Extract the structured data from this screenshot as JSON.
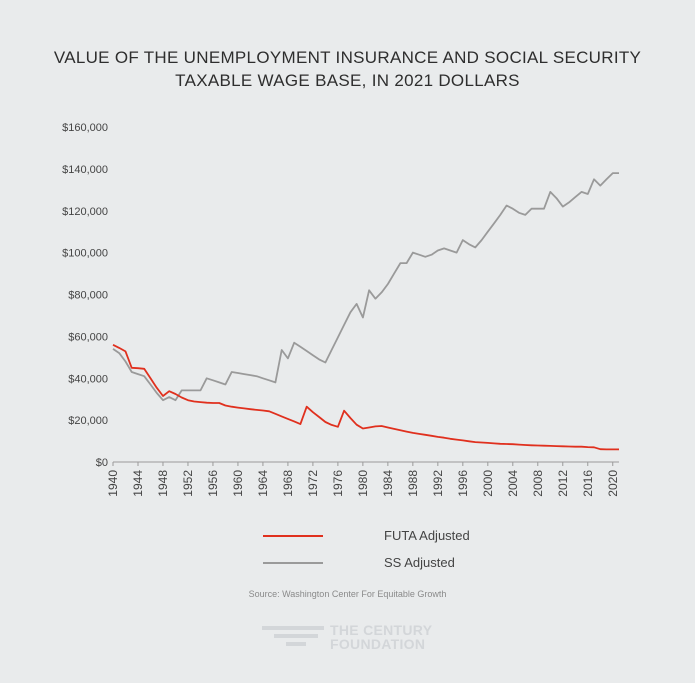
{
  "chart_data": {
    "type": "line",
    "title": [
      "VALUE OF THE UNEMPLOYMENT INSURANCE AND SOCIAL SECURITY",
      "TAXABLE WAGE BASE, IN 2021 DOLLARS"
    ],
    "xlabel": "",
    "ylabel": "",
    "xlim": [
      1940,
      2021
    ],
    "ylim": [
      0,
      160000
    ],
    "x_ticks": [
      "1940",
      "1944",
      "1948",
      "1952",
      "1956",
      "1960",
      "1964",
      "1968",
      "1972",
      "1976",
      "1980",
      "1984",
      "1988",
      "1992",
      "1996",
      "2000",
      "2004",
      "2008",
      "2012",
      "2016",
      "2020"
    ],
    "y_ticks": [
      "$0",
      "$20,000",
      "$40,000",
      "$60,000",
      "$80,000",
      "$100,000",
      "$120,000",
      "$140,000",
      "$160,000"
    ],
    "series": [
      {
        "name": "FUTA Adjusted",
        "color": "#e0301e",
        "x": [
          1940,
          1941,
          1942,
          1943,
          1944,
          1945,
          1946,
          1947,
          1948,
          1949,
          1950,
          1951,
          1952,
          1953,
          1954,
          1955,
          1956,
          1957,
          1958,
          1959,
          1960,
          1961,
          1962,
          1963,
          1964,
          1965,
          1966,
          1967,
          1968,
          1969,
          1970,
          1971,
          1972,
          1973,
          1974,
          1975,
          1976,
          1977,
          1978,
          1979,
          1980,
          1981,
          1982,
          1983,
          1984,
          1985,
          1986,
          1987,
          1988,
          1989,
          1990,
          1991,
          1992,
          1993,
          1994,
          1995,
          1996,
          1997,
          1998,
          1999,
          2000,
          2001,
          2002,
          2003,
          2004,
          2005,
          2006,
          2007,
          2008,
          2009,
          2010,
          2011,
          2012,
          2013,
          2014,
          2015,
          2016,
          2017,
          2018,
          2019,
          2020,
          2021
        ],
        "values": [
          56000,
          54500,
          52800,
          45000,
          44800,
          44500,
          40000,
          35500,
          31500,
          33800,
          32500,
          30800,
          29500,
          28900,
          28600,
          28300,
          28200,
          28200,
          27000,
          26400,
          26000,
          25600,
          25200,
          24900,
          24600,
          24200,
          23000,
          21800,
          20600,
          19400,
          18100,
          26400,
          23800,
          21500,
          19100,
          17700,
          16800,
          24500,
          21000,
          17800,
          16000,
          16500,
          17000,
          17200,
          16500,
          15800,
          15200,
          14500,
          13900,
          13400,
          13000,
          12500,
          12000,
          11600,
          11100,
          10700,
          10300,
          9900,
          9500,
          9300,
          9100,
          8900,
          8700,
          8600,
          8500,
          8300,
          8100,
          8000,
          7900,
          7800,
          7700,
          7600,
          7500,
          7400,
          7300,
          7300,
          7100,
          7000,
          6100,
          6000,
          6000,
          6000
        ]
      },
      {
        "name": "SS Adjusted",
        "color": "#9a9a9a",
        "x": [
          1940,
          1941,
          1942,
          1943,
          1944,
          1945,
          1946,
          1947,
          1948,
          1949,
          1950,
          1951,
          1952,
          1953,
          1954,
          1955,
          1956,
          1957,
          1958,
          1959,
          1960,
          1961,
          1962,
          1963,
          1964,
          1965,
          1966,
          1967,
          1968,
          1969,
          1970,
          1971,
          1972,
          1973,
          1974,
          1975,
          1976,
          1977,
          1978,
          1979,
          1980,
          1981,
          1982,
          1983,
          1984,
          1985,
          1986,
          1987,
          1988,
          1989,
          1990,
          1991,
          1992,
          1993,
          1994,
          1995,
          1996,
          1997,
          1998,
          1999,
          2000,
          2001,
          2002,
          2003,
          2004,
          2005,
          2006,
          2007,
          2008,
          2009,
          2010,
          2011,
          2012,
          2013,
          2014,
          2015,
          2016,
          2017,
          2018,
          2019,
          2020,
          2021
        ],
        "values": [
          54000,
          52000,
          48000,
          43000,
          42000,
          41000,
          37000,
          33000,
          29500,
          31000,
          29500,
          34200,
          34200,
          34200,
          34200,
          40000,
          39000,
          38000,
          37000,
          43000,
          42500,
          42000,
          41500,
          41000,
          40000,
          39000,
          38000,
          53500,
          49500,
          57000,
          55000,
          53000,
          51000,
          49000,
          47500,
          53500,
          59500,
          65500,
          71500,
          75500,
          69000,
          82000,
          78000,
          81000,
          85000,
          90000,
          95000,
          95000,
          100000,
          99000,
          98000,
          99000,
          101000,
          102000,
          101000,
          100000,
          106000,
          104000,
          102500,
          106000,
          110000,
          114000,
          118000,
          122500,
          121000,
          119000,
          118000,
          121000,
          121000,
          121000,
          129000,
          126000,
          122000,
          124000,
          126500,
          129000,
          128000,
          135000,
          132000,
          135000,
          138000,
          138000
        ]
      }
    ]
  },
  "legend": [
    {
      "label": "FUTA Adjusted",
      "color": "#e0301e"
    },
    {
      "label": "SS Adjusted",
      "color": "#9a9a9a"
    }
  ],
  "source": "Source:  Washington Center For Equitable Growth",
  "logo": {
    "line1": "THE CENTURY",
    "line2": "FOUNDATION"
  }
}
